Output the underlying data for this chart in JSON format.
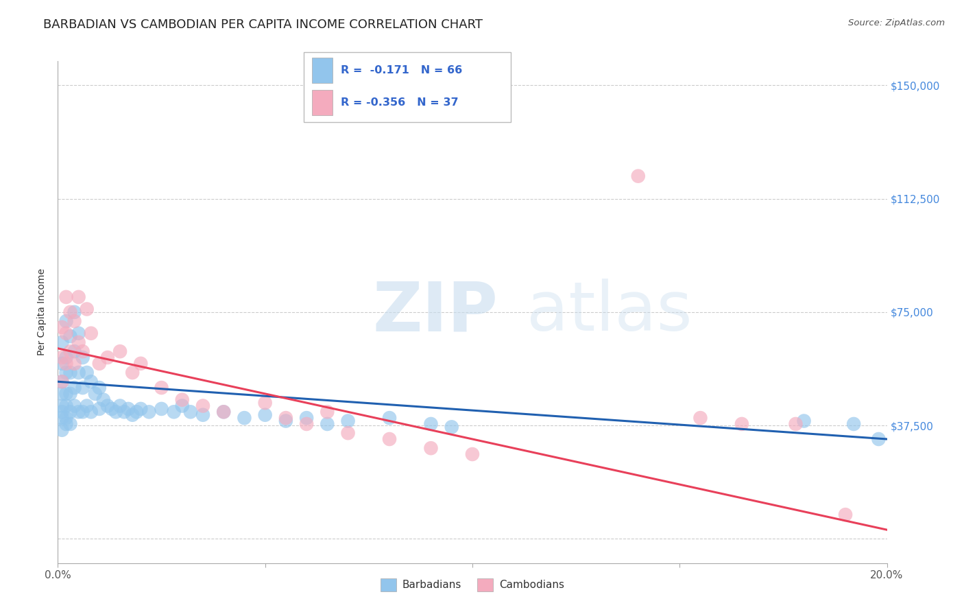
{
  "title": "BARBADIAN VS CAMBODIAN PER CAPITA INCOME CORRELATION CHART",
  "source": "Source: ZipAtlas.com",
  "ylabel": "Per Capita Income",
  "xlim": [
    0.0,
    0.2
  ],
  "ylim": [
    -8000,
    158000
  ],
  "yticks": [
    0,
    37500,
    75000,
    112500,
    150000
  ],
  "ytick_labels": [
    "",
    "$37,500",
    "$75,000",
    "$112,500",
    "$150,000"
  ],
  "xticks": [
    0.0,
    0.05,
    0.1,
    0.15,
    0.2
  ],
  "xtick_labels": [
    "0.0%",
    "",
    "",
    "",
    "20.0%"
  ],
  "blue_color": "#92C5EC",
  "pink_color": "#F4ABBE",
  "blue_line_color": "#2060B0",
  "pink_line_color": "#E8405A",
  "watermark_zip": "ZIP",
  "watermark_atlas": "atlas",
  "title_fontsize": 13,
  "axis_label_fontsize": 10,
  "tick_fontsize": 11,
  "background_color": "#FFFFFF",
  "grid_color": "#CCCCCC",
  "barbadian_x": [
    0.001,
    0.001,
    0.001,
    0.001,
    0.001,
    0.001,
    0.001,
    0.001,
    0.002,
    0.002,
    0.002,
    0.002,
    0.002,
    0.002,
    0.002,
    0.003,
    0.003,
    0.003,
    0.003,
    0.003,
    0.004,
    0.004,
    0.004,
    0.004,
    0.005,
    0.005,
    0.005,
    0.006,
    0.006,
    0.006,
    0.007,
    0.007,
    0.008,
    0.008,
    0.009,
    0.01,
    0.01,
    0.011,
    0.012,
    0.013,
    0.014,
    0.015,
    0.016,
    0.017,
    0.018,
    0.019,
    0.02,
    0.022,
    0.025,
    0.028,
    0.03,
    0.032,
    0.035,
    0.04,
    0.045,
    0.05,
    0.055,
    0.06,
    0.065,
    0.07,
    0.08,
    0.09,
    0.095,
    0.18,
    0.192,
    0.198
  ],
  "barbadian_y": [
    65000,
    58000,
    52000,
    48000,
    44000,
    40000,
    36000,
    42000,
    72000,
    60000,
    55000,
    48000,
    44000,
    40000,
    38000,
    67000,
    55000,
    48000,
    42000,
    38000,
    75000,
    62000,
    50000,
    44000,
    68000,
    55000,
    42000,
    60000,
    50000,
    42000,
    55000,
    44000,
    52000,
    42000,
    48000,
    50000,
    43000,
    46000,
    44000,
    43000,
    42000,
    44000,
    42000,
    43000,
    41000,
    42000,
    43000,
    42000,
    43000,
    42000,
    44000,
    42000,
    41000,
    42000,
    40000,
    41000,
    39000,
    40000,
    38000,
    39000,
    40000,
    38000,
    37000,
    39000,
    38000,
    33000
  ],
  "cambodian_x": [
    0.001,
    0.001,
    0.001,
    0.002,
    0.002,
    0.002,
    0.003,
    0.003,
    0.004,
    0.004,
    0.005,
    0.005,
    0.006,
    0.007,
    0.008,
    0.01,
    0.012,
    0.015,
    0.018,
    0.02,
    0.025,
    0.03,
    0.035,
    0.04,
    0.05,
    0.055,
    0.06,
    0.065,
    0.07,
    0.08,
    0.09,
    0.1,
    0.14,
    0.155,
    0.165,
    0.178,
    0.19
  ],
  "cambodian_y": [
    70000,
    60000,
    52000,
    80000,
    68000,
    58000,
    75000,
    62000,
    72000,
    58000,
    80000,
    65000,
    62000,
    76000,
    68000,
    58000,
    60000,
    62000,
    55000,
    58000,
    50000,
    46000,
    44000,
    42000,
    45000,
    40000,
    38000,
    42000,
    35000,
    33000,
    30000,
    28000,
    120000,
    40000,
    38000,
    38000,
    8000
  ],
  "blue_trendline_y0": 52000,
  "blue_trendline_y1": 33000,
  "pink_trendline_y0": 63000,
  "pink_trendline_y1": 3000
}
